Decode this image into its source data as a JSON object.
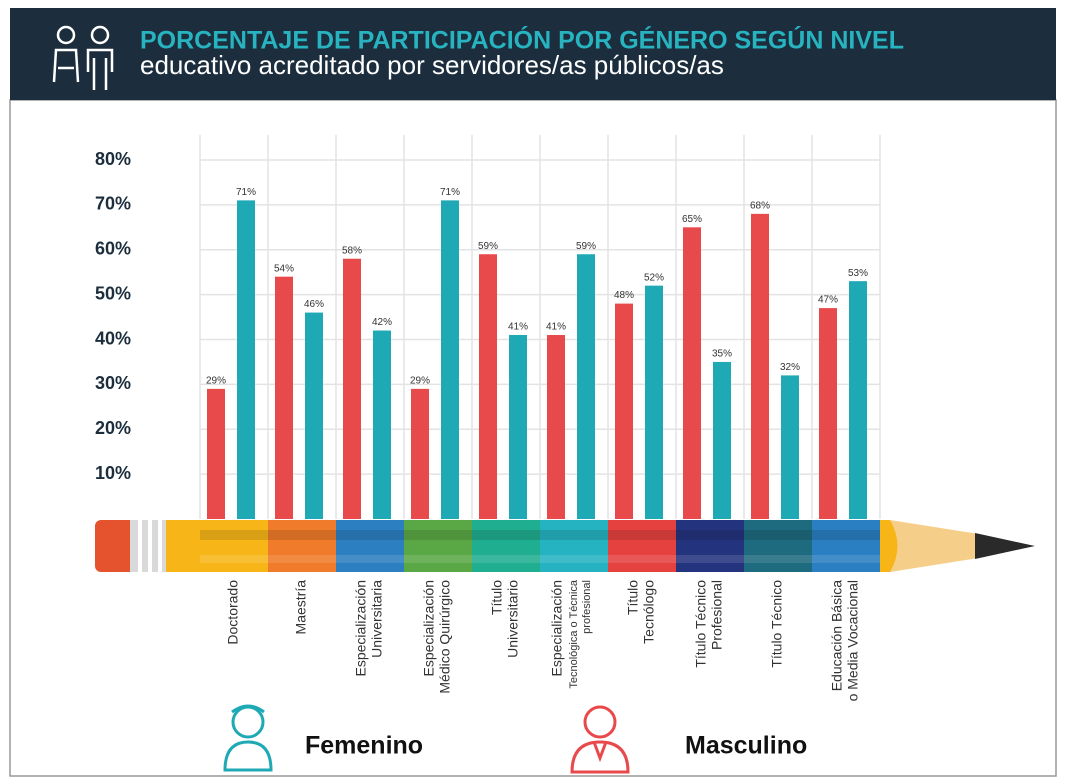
{
  "chart_data": {
    "type": "bar",
    "title": "PORCENTAJE DE PARTICIPACIÓN POR GÉNERO SEGÚN NIVEL",
    "subtitle": "educativo acreditado por servidores/as públicos/as",
    "categories": [
      [
        "Doctorado"
      ],
      [
        "Maestría"
      ],
      [
        "Especialización",
        "Universitaria"
      ],
      [
        "Especialización",
        "Médico Quirúrgico"
      ],
      [
        "Título",
        "Universitario"
      ],
      [
        "Especialización",
        "Tecnológica o Técnica",
        "profesional"
      ],
      [
        "Título",
        "Tecnólogo"
      ],
      [
        "Título Técnico",
        "Profesional"
      ],
      [
        "Título Técnico"
      ],
      [
        "Educación Básica",
        "o Media Vocacional"
      ]
    ],
    "series": [
      {
        "name": "Masculino",
        "color": "#e84a4c",
        "values": [
          29,
          54,
          58,
          29,
          59,
          41,
          48,
          65,
          68,
          47
        ],
        "value_labels": [
          "29%",
          "54%",
          "58%",
          "29%",
          "59%",
          "41%",
          "48%",
          "65%",
          "68%",
          "47%"
        ]
      },
      {
        "name": "Femenino",
        "color": "#1ea9b4",
        "values": [
          71,
          46,
          42,
          71,
          41,
          59,
          52,
          35,
          32,
          53
        ],
        "value_labels": [
          "71%",
          "46%",
          "42%",
          "71%",
          "41%",
          "59%",
          "52%",
          "35%",
          "32%",
          "53%"
        ]
      }
    ],
    "ylim": [
      0,
      80
    ],
    "yticks": [
      {
        "value": 10,
        "label": "10%"
      },
      {
        "value": 20,
        "label": "20%"
      },
      {
        "value": 30,
        "label": "30%"
      },
      {
        "value": 40,
        "label": "40%"
      },
      {
        "value": 50,
        "label": "50%"
      },
      {
        "value": 60,
        "label": "60%"
      },
      {
        "value": 70,
        "label": "70%"
      },
      {
        "value": 80,
        "label": "80%"
      }
    ],
    "grid": true
  }
}
